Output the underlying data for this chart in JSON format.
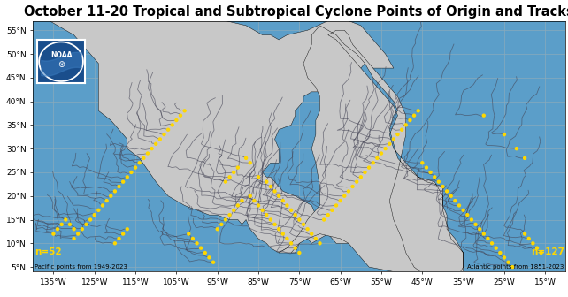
{
  "title": "October 11-20 Tropical and Subtropical Cyclone Points of Origin and Tracks",
  "title_fontsize": 10.5,
  "lon_min": -140,
  "lon_max": -10,
  "lat_min": 4,
  "lat_max": 57,
  "ocean_color": "#5B9EC9",
  "land_color": "#C8C8C8",
  "track_color": "#444455",
  "track_alpha": 0.65,
  "track_lw": 0.55,
  "point_color": "#FFD700",
  "point_size": 10,
  "grid_color": "#8AAABB",
  "grid_lw": 0.5,
  "noaa_box_color": "#1A4E8C",
  "label_left": "n=52",
  "label_right": "n=127",
  "sublabel_left": "Pacific points from 1949-2023",
  "sublabel_right": "Atlantic points from 1851-2023",
  "label_color": "#FFD700",
  "sublabel_color": "#000000",
  "x_ticks": [
    -135,
    -125,
    -115,
    -105,
    -95,
    -85,
    -75,
    -65,
    -55,
    -45,
    -35,
    -25,
    -15
  ],
  "x_tick_labels": [
    "135°W",
    "125°W",
    "115°W",
    "105°W",
    "95°W",
    "85°W",
    "75°W",
    "65°W",
    "55°W",
    "45°W",
    "35°W",
    "25°W",
    "15°W"
  ],
  "y_ticks": [
    5,
    10,
    15,
    20,
    25,
    30,
    35,
    40,
    45,
    50,
    55
  ],
  "y_tick_labels": [
    "5°N",
    "10°N",
    "15°N",
    "20°N",
    "25°N",
    "30°N",
    "35°N",
    "40°N",
    "45°N",
    "50°N",
    "55°N"
  ]
}
